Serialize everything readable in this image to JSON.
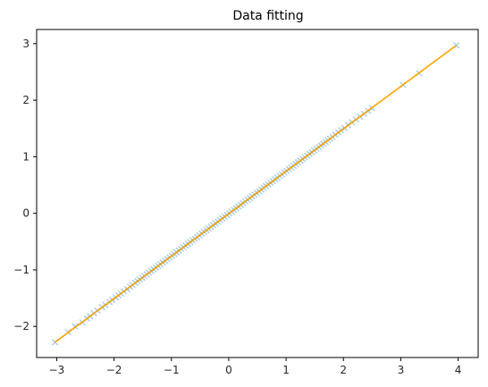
{
  "chart_data": {
    "type": "scatter",
    "title": "Data fitting",
    "xlabel": "",
    "ylabel": "",
    "xlim": [
      -3.35,
      4.35
    ],
    "ylim": [
      -2.55,
      3.25
    ],
    "xticks": [
      -3,
      -2,
      -1,
      0,
      1,
      2,
      3,
      4
    ],
    "yticks": [
      -2,
      -1,
      0,
      1,
      2,
      3
    ],
    "xtick_labels": [
      "−3",
      "−2",
      "−1",
      "0",
      "1",
      "2",
      "3",
      "4"
    ],
    "ytick_labels": [
      "−2",
      "−1",
      "0",
      "1",
      "2",
      "3"
    ],
    "grid": false,
    "legend": "none",
    "series": [
      {
        "kind": "scatter",
        "marker": "x",
        "color": "#1f77b4",
        "alpha": 0.4,
        "x": [
          -3.03,
          -2.8,
          -2.68,
          -2.55,
          -2.47,
          -2.42,
          -2.35,
          -2.29,
          -2.21,
          -2.15,
          -2.08,
          -2.03,
          -1.97,
          -1.92,
          -1.88,
          -1.83,
          -1.77,
          -1.72,
          -1.68,
          -1.63,
          -1.59,
          -1.55,
          -1.51,
          -1.47,
          -1.43,
          -1.39,
          -1.35,
          -1.31,
          -1.27,
          -1.23,
          -1.19,
          -1.15,
          -1.11,
          -1.07,
          -1.03,
          -0.99,
          -0.95,
          -0.91,
          -0.87,
          -0.83,
          -0.79,
          -0.75,
          -0.71,
          -0.67,
          -0.63,
          -0.59,
          -0.55,
          -0.51,
          -0.47,
          -0.43,
          -0.39,
          -0.35,
          -0.31,
          -0.27,
          -0.23,
          -0.19,
          -0.15,
          -0.11,
          -0.07,
          -0.03,
          0.01,
          0.05,
          0.09,
          0.13,
          0.17,
          0.21,
          0.25,
          0.29,
          0.33,
          0.37,
          0.41,
          0.45,
          0.49,
          0.53,
          0.57,
          0.61,
          0.65,
          0.69,
          0.73,
          0.77,
          0.81,
          0.85,
          0.89,
          0.93,
          0.97,
          1.01,
          1.05,
          1.09,
          1.13,
          1.17,
          1.21,
          1.25,
          1.29,
          1.33,
          1.37,
          1.41,
          1.45,
          1.49,
          1.53,
          1.57,
          1.61,
          1.65,
          1.69,
          1.73,
          1.77,
          1.81,
          1.86,
          1.91,
          1.96,
          2.02,
          2.08,
          2.15,
          2.22,
          2.29,
          2.36,
          2.43,
          2.5,
          3.04,
          3.32,
          3.97
        ],
        "y": [
          -2.28,
          -2.1,
          -2.0,
          -1.93,
          -1.86,
          -1.82,
          -1.77,
          -1.72,
          -1.66,
          -1.62,
          -1.57,
          -1.53,
          -1.49,
          -1.45,
          -1.42,
          -1.38,
          -1.34,
          -1.3,
          -1.27,
          -1.23,
          -1.2,
          -1.17,
          -1.14,
          -1.11,
          -1.08,
          -1.05,
          -1.02,
          -0.99,
          -0.96,
          -0.93,
          -0.9,
          -0.87,
          -0.84,
          -0.81,
          -0.78,
          -0.75,
          -0.72,
          -0.69,
          -0.66,
          -0.63,
          -0.6,
          -0.57,
          -0.54,
          -0.51,
          -0.48,
          -0.45,
          -0.42,
          -0.39,
          -0.36,
          -0.33,
          -0.3,
          -0.27,
          -0.24,
          -0.21,
          -0.18,
          -0.15,
          -0.12,
          -0.09,
          -0.06,
          -0.03,
          0.0,
          0.03,
          0.06,
          0.09,
          0.12,
          0.15,
          0.18,
          0.21,
          0.24,
          0.27,
          0.3,
          0.33,
          0.36,
          0.39,
          0.42,
          0.45,
          0.48,
          0.51,
          0.54,
          0.57,
          0.6,
          0.63,
          0.66,
          0.69,
          0.72,
          0.75,
          0.78,
          0.81,
          0.84,
          0.87,
          0.9,
          0.93,
          0.96,
          0.99,
          1.02,
          1.05,
          1.08,
          1.11,
          1.14,
          1.17,
          1.2,
          1.23,
          1.26,
          1.29,
          1.32,
          1.35,
          1.39,
          1.43,
          1.47,
          1.51,
          1.56,
          1.61,
          1.66,
          1.71,
          1.76,
          1.81,
          1.86,
          2.27,
          2.48,
          2.97
        ]
      },
      {
        "kind": "line",
        "color": "#ffa500",
        "x": [
          -3.03,
          3.97
        ],
        "y": [
          -2.28,
          2.97
        ]
      }
    ]
  }
}
